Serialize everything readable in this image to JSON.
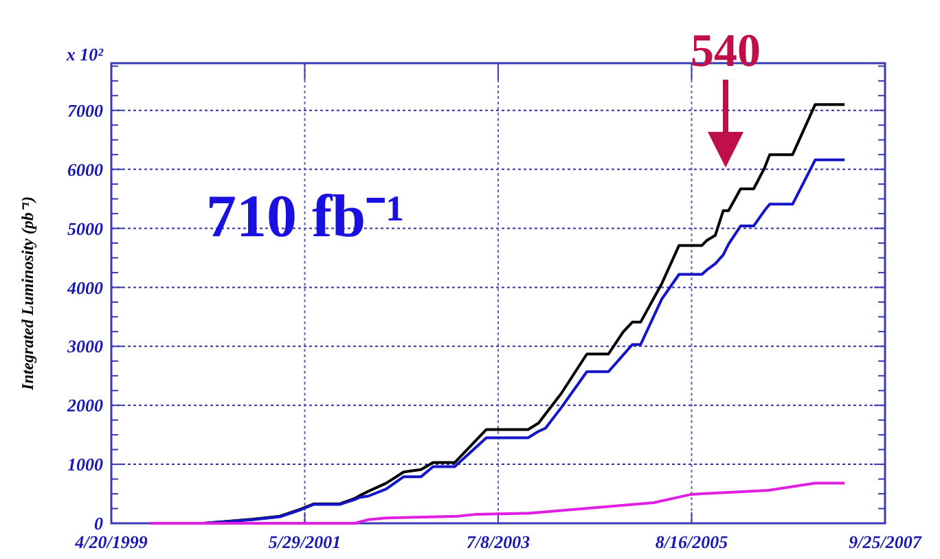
{
  "chart_data": {
    "type": "line",
    "ylabel": "Integrated Luminosity (pb⁻¹)",
    "x": [
      "1999-09-21",
      "2000-04-21",
      "2000-11-04",
      "2001-02-19",
      "2001-05-13",
      "2001-07-05",
      "2001-10-15",
      "2001-12-13",
      "2002-01-03",
      "2002-02-05",
      "2002-04-18",
      "2002-06-27",
      "2002-09-04",
      "2002-10-22",
      "2003-01-16",
      "2003-05-22",
      "2003-11-04",
      "2003-12-16",
      "2004-01-12",
      "2004-03-15",
      "2004-06-25",
      "2004-09-19",
      "2004-11-16",
      "2004-12-23",
      "2005-01-25",
      "2005-04-19",
      "2005-06-27",
      "2005-09-26",
      "2005-10-17",
      "2005-11-18",
      "2005-12-20",
      "2006-01-10",
      "2006-02-27",
      "2006-04-20",
      "2006-06-02",
      "2006-06-23",
      "2006-09-22",
      "2006-12-21",
      "2007-04-17"
    ],
    "series": [
      {
        "color": "#000000",
        "values": [
          0,
          0,
          70,
          120,
          240,
          330,
          330,
          420,
          470,
          540,
          680,
          870,
          910,
          1030,
          1030,
          1590,
          1590,
          1700,
          1850,
          2200,
          2870,
          2870,
          3240,
          3410,
          3410,
          4060,
          4710,
          4710,
          4800,
          4880,
          5300,
          5300,
          5670,
          5670,
          6020,
          6250,
          6250,
          7100,
          7100
        ]
      },
      {
        "color": "#1414c8",
        "values": [
          0,
          0,
          60,
          110,
          230,
          320,
          320,
          400,
          440,
          460,
          580,
          790,
          790,
          960,
          960,
          1450,
          1450,
          1560,
          1610,
          1960,
          2570,
          2570,
          2850,
          3030,
          3030,
          3800,
          4220,
          4220,
          4300,
          4400,
          4550,
          4730,
          5040,
          5040,
          5300,
          5410,
          5410,
          6160,
          6160
        ]
      },
      {
        "color": "#e020e0",
        "x": [
          "1999-09-21",
          "2001-12-13",
          "2002-02-05",
          "2002-04-18",
          "2003-01-27",
          "2003-04-05",
          "2003-11-04",
          "2004-07-11",
          "2005-03-18",
          "2005-08-14",
          "2006-06-18",
          "2006-12-21",
          "2007-04-17"
        ],
        "values": [
          0,
          0,
          60,
          90,
          120,
          150,
          170,
          260,
          350,
          490,
          560,
          680,
          680
        ]
      }
    ],
    "xlim": [
      "1999-04-20",
      "2007-09-25"
    ],
    "xticks": [
      {
        "value": "1999-04-20",
        "label": "4/20/1999"
      },
      {
        "value": "2001-05-29",
        "label": "5/29/2001"
      },
      {
        "value": "2003-07-08",
        "label": "7/8/2003"
      },
      {
        "value": "2005-08-16",
        "label": "8/16/2005"
      },
      {
        "value": "2007-09-25",
        "label": "9/25/2007"
      }
    ],
    "ylim": [
      0,
      7800
    ],
    "yticks": [
      0,
      {
        "value": 250,
        "label": null
      },
      {
        "value": 500,
        "label": null
      },
      {
        "value": 750,
        "label": null
      },
      1000,
      {
        "value": 1250,
        "label": null
      },
      {
        "value": 1500,
        "label": null
      },
      {
        "value": 1750,
        "label": null
      },
      2000,
      {
        "value": 2250,
        "label": null
      },
      {
        "value": 2500,
        "label": null
      },
      {
        "value": 2750,
        "label": null
      },
      3000,
      {
        "value": 3250,
        "label": null
      },
      {
        "value": 3500,
        "label": null
      },
      {
        "value": 3750,
        "label": null
      },
      4000,
      {
        "value": 4250,
        "label": null
      },
      {
        "value": 4500,
        "label": null
      },
      {
        "value": 4750,
        "label": null
      },
      5000,
      {
        "value": 5250,
        "label": null
      },
      {
        "value": 5500,
        "label": null
      },
      {
        "value": 5750,
        "label": null
      },
      6000,
      {
        "value": 6250,
        "label": null
      },
      {
        "value": 6500,
        "label": null
      },
      {
        "value": 6750,
        "label": null
      },
      7000,
      {
        "value": 7250,
        "label": null
      },
      {
        "value": 7500,
        "label": null
      },
      {
        "value": 7750,
        "label": null
      }
    ],
    "grid": true,
    "line_style": "solid",
    "marker": "none",
    "annotations": [
      "x 10²",
      "710 fb⁻¹",
      "540"
    ]
  }
}
